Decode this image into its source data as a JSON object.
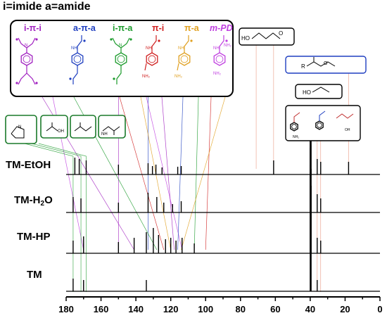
{
  "header": {
    "title": "i=imide a=amide"
  },
  "legend": {
    "items": [
      {
        "label": "i-π-i",
        "color": "#a020c0"
      },
      {
        "label": "a-π-a",
        "color": "#1f3fc0"
      },
      {
        "label": "i-π-a",
        "color": "#1a9a2a"
      },
      {
        "label": "π-i",
        "color": "#d02020"
      },
      {
        "label": "π-a",
        "color": "#e0a020"
      },
      {
        "label": "m-PD",
        "color": "#c040e0"
      }
    ]
  },
  "structure_labels": {
    "nh2": "NH₂",
    "oh": "OH",
    "ho": "HO",
    "r": "R",
    "o": "O",
    "n": "N",
    "nh": "NH"
  },
  "chart_data": {
    "type": "line",
    "title": "",
    "xlabel": "",
    "ylabel": "",
    "xlim": [
      180,
      0
    ],
    "x_reversed": true,
    "xticks": [
      180,
      160,
      140,
      120,
      100,
      80,
      60,
      40,
      20,
      0
    ],
    "series": [
      {
        "name": "TM-EtOH",
        "peaks": [
          {
            "x": 175,
            "h": 24
          },
          {
            "x": 172.5,
            "h": 22
          },
          {
            "x": 168.5,
            "h": 20
          },
          {
            "x": 150,
            "h": 14
          },
          {
            "x": 133,
            "h": 16
          },
          {
            "x": 130.5,
            "h": 12
          },
          {
            "x": 128.5,
            "h": 14
          },
          {
            "x": 125,
            "h": 10
          },
          {
            "x": 116,
            "h": 11
          },
          {
            "x": 114,
            "h": 12
          },
          {
            "x": 61,
            "h": 20
          },
          {
            "x": 40,
            "h": 90
          },
          {
            "x": 39.5,
            "h": 70
          },
          {
            "x": 36,
            "h": 22
          },
          {
            "x": 34,
            "h": 18
          },
          {
            "x": 18,
            "h": 18
          }
        ]
      },
      {
        "name": "TM-H2O",
        "label_main": "TM-H",
        "label_sub": "2",
        "label_tail": "O",
        "peaks": [
          {
            "x": 176,
            "h": 22
          },
          {
            "x": 171.5,
            "h": 20
          },
          {
            "x": 150,
            "h": 14
          },
          {
            "x": 133,
            "h": 28
          },
          {
            "x": 128,
            "h": 22
          },
          {
            "x": 124,
            "h": 14
          },
          {
            "x": 119,
            "h": 12
          },
          {
            "x": 114,
            "h": 16
          },
          {
            "x": 40,
            "h": 120
          },
          {
            "x": 39.6,
            "h": 95
          },
          {
            "x": 36,
            "h": 26
          },
          {
            "x": 34,
            "h": 20
          }
        ]
      },
      {
        "name": "TM-HP",
        "peaks": [
          {
            "x": 176,
            "h": 18
          },
          {
            "x": 170,
            "h": 24
          },
          {
            "x": 150,
            "h": 16
          },
          {
            "x": 141,
            "h": 22
          },
          {
            "x": 134,
            "h": 30
          },
          {
            "x": 130,
            "h": 36
          },
          {
            "x": 127,
            "h": 26
          },
          {
            "x": 123,
            "h": 20
          },
          {
            "x": 120,
            "h": 22
          },
          {
            "x": 117,
            "h": 18
          },
          {
            "x": 113.5,
            "h": 22
          },
          {
            "x": 106.5,
            "h": 14
          },
          {
            "x": 40,
            "h": 150
          },
          {
            "x": 39.5,
            "h": 120
          },
          {
            "x": 36,
            "h": 22
          },
          {
            "x": 34,
            "h": 18
          }
        ]
      },
      {
        "name": "TM",
        "peaks": [
          {
            "x": 176,
            "h": 18
          },
          {
            "x": 170,
            "h": 16
          },
          {
            "x": 134,
            "h": 16
          },
          {
            "x": 40,
            "h": 180
          },
          {
            "x": 39.5,
            "h": 150
          },
          {
            "x": 36,
            "h": 16
          }
        ]
      }
    ]
  }
}
